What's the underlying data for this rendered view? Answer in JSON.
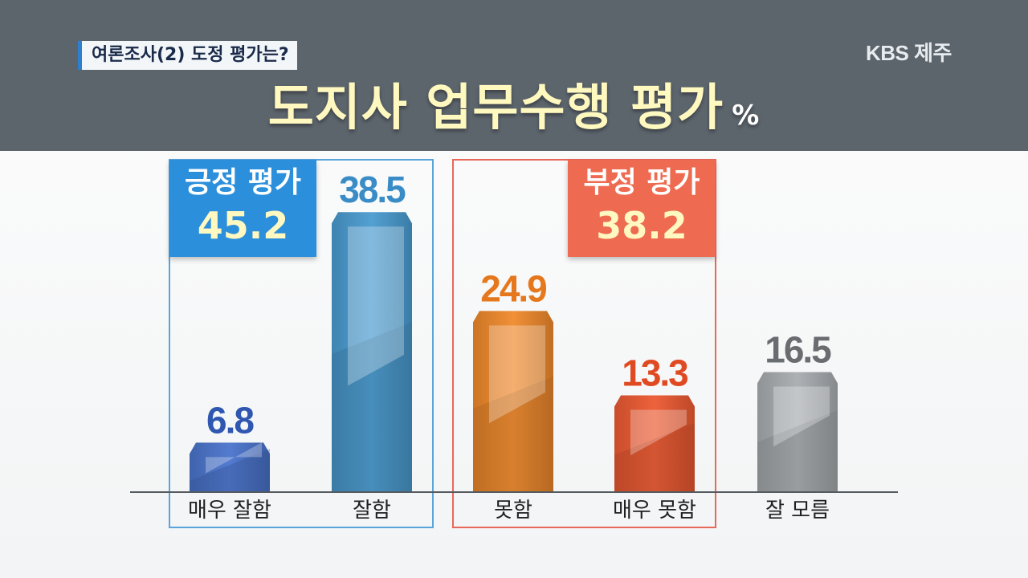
{
  "header": {
    "subtitle": "여론조사(2) 도정 평가는?",
    "broadcaster": "KBS 제주",
    "title": "도지사 업무수행 평가",
    "title_unit": "%"
  },
  "groups": {
    "positive": {
      "label": "긍정 평가",
      "value": "45.2"
    },
    "negative": {
      "label": "부정 평가",
      "value": "38.2"
    }
  },
  "colors": {
    "header_bg": "#5c646c",
    "title_text": "#fff9c0",
    "positive_accent": "#2c8fdc",
    "negative_accent": "#ee6a50"
  },
  "chart_data": {
    "type": "bar",
    "title": "도지사 업무수행 평가",
    "unit": "%",
    "categories": [
      "매우 잘함",
      "잘함",
      "못함",
      "매우 못함",
      "잘 모름"
    ],
    "values": [
      6.8,
      38.5,
      24.9,
      13.3,
      16.5
    ],
    "value_labels": [
      "6.8",
      "38.5",
      "24.9",
      "13.3",
      "16.5"
    ],
    "bar_colors": [
      "#4a74cc",
      "#4a9bd0",
      "#f08a2c",
      "#ec5a32",
      "#a9adb0"
    ],
    "value_colors": [
      "#2f56b0",
      "#3a8cc6",
      "#e5781c",
      "#e04a22",
      "#6a6d70"
    ],
    "ylim": [
      0,
      40
    ],
    "grid": false,
    "legend": "none"
  }
}
